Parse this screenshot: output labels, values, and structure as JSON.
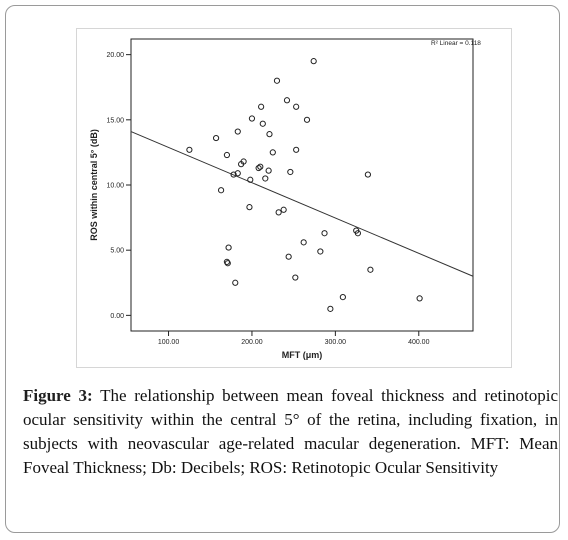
{
  "caption": {
    "label": "Figure 3:",
    "text": "The relationship between mean foveal thickness and retinotopic ocular sensitivity within the central 5° of the retina, including fixation, in subjects with neovascular age-related macular degeneration. MFT: Mean Foveal Thickness; Db: Decibels; ROS: Retinotopic Ocular Sensitivity"
  },
  "chart_data": {
    "type": "scatter",
    "xlabel": "MFT (μm)",
    "ylabel": "ROS within central 5° (dB)",
    "annotation": "R² Linear = 0.118",
    "xlim": [
      55,
      465
    ],
    "ylim": [
      -1.2,
      21.2
    ],
    "xticks": [
      100,
      200,
      300,
      400
    ],
    "xtick_labels": [
      "100.00",
      "200.00",
      "300.00",
      "400.00"
    ],
    "yticks": [
      0,
      5,
      10,
      15,
      20
    ],
    "ytick_labels": [
      "0.00",
      "5.00",
      "10.00",
      "15.00",
      "20.00"
    ],
    "grid": false,
    "points": [
      {
        "x": 125,
        "y": 12.7
      },
      {
        "x": 157,
        "y": 13.6
      },
      {
        "x": 163,
        "y": 9.6
      },
      {
        "x": 170,
        "y": 12.3
      },
      {
        "x": 170,
        "y": 4.1
      },
      {
        "x": 171,
        "y": 4.0
      },
      {
        "x": 172,
        "y": 5.2
      },
      {
        "x": 178,
        "y": 10.8
      },
      {
        "x": 180,
        "y": 2.5
      },
      {
        "x": 183,
        "y": 14.1
      },
      {
        "x": 183,
        "y": 10.9
      },
      {
        "x": 187,
        "y": 11.6
      },
      {
        "x": 190,
        "y": 11.8
      },
      {
        "x": 197,
        "y": 8.3
      },
      {
        "x": 198,
        "y": 10.4
      },
      {
        "x": 200,
        "y": 15.1
      },
      {
        "x": 208,
        "y": 11.3
      },
      {
        "x": 210,
        "y": 11.4
      },
      {
        "x": 211,
        "y": 16.0
      },
      {
        "x": 213,
        "y": 14.7
      },
      {
        "x": 216,
        "y": 10.5
      },
      {
        "x": 220,
        "y": 11.1
      },
      {
        "x": 221,
        "y": 13.9
      },
      {
        "x": 225,
        "y": 12.5
      },
      {
        "x": 230,
        "y": 18.0
      },
      {
        "x": 232,
        "y": 7.9
      },
      {
        "x": 238,
        "y": 8.1
      },
      {
        "x": 242,
        "y": 16.5
      },
      {
        "x": 244,
        "y": 4.5
      },
      {
        "x": 246,
        "y": 11.0
      },
      {
        "x": 252,
        "y": 2.9
      },
      {
        "x": 253,
        "y": 12.7
      },
      {
        "x": 253,
        "y": 16.0
      },
      {
        "x": 262,
        "y": 5.6
      },
      {
        "x": 266,
        "y": 15.0
      },
      {
        "x": 274,
        "y": 19.5
      },
      {
        "x": 282,
        "y": 4.9
      },
      {
        "x": 287,
        "y": 6.3
      },
      {
        "x": 294,
        "y": 0.5
      },
      {
        "x": 309,
        "y": 1.4
      },
      {
        "x": 325,
        "y": 6.5
      },
      {
        "x": 327,
        "y": 6.3
      },
      {
        "x": 339,
        "y": 10.8
      },
      {
        "x": 342,
        "y": 3.5
      },
      {
        "x": 401,
        "y": 1.3
      }
    ],
    "fit_line": {
      "x": [
        55,
        465
      ],
      "y": [
        14.1,
        3.0
      ]
    }
  }
}
